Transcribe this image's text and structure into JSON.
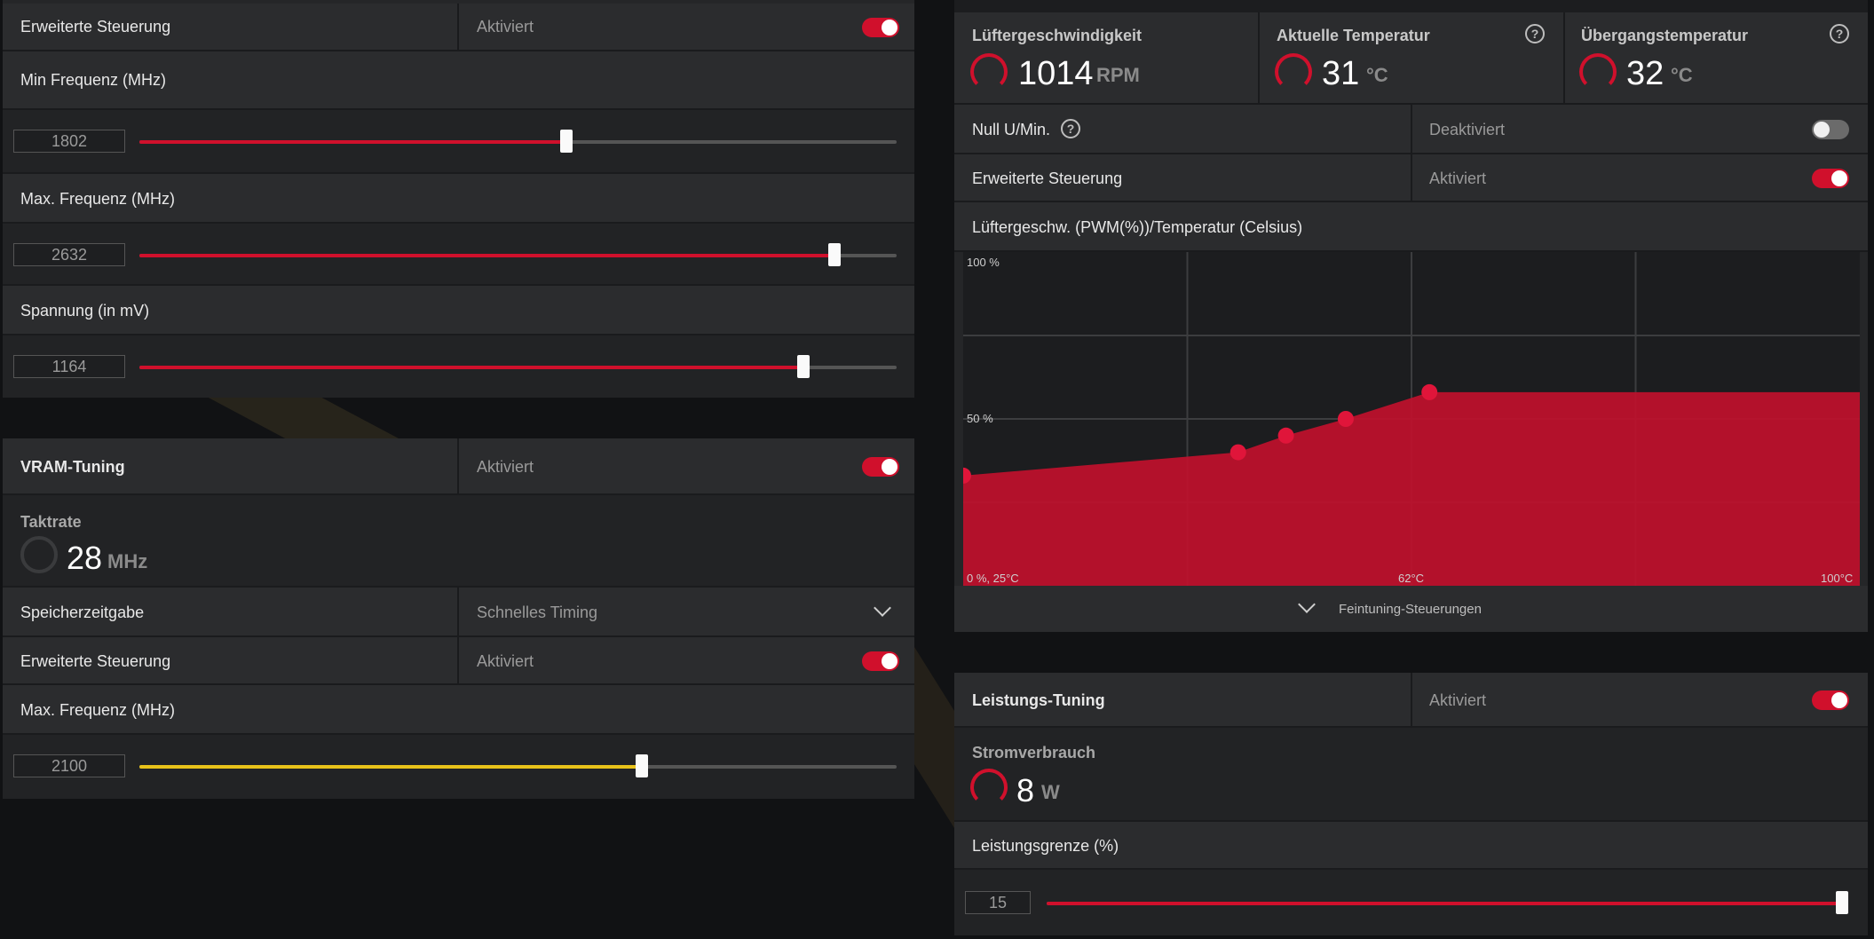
{
  "left": {
    "gpu": {
      "advanced": {
        "label": "Erweiterte Steuerung",
        "status": "Aktiviert",
        "on": true
      },
      "min_freq": {
        "label": "Min Frequenz (MHz)",
        "value": "1802",
        "fraction": 0.564
      },
      "max_freq": {
        "label": "Max. Frequenz (MHz)",
        "value": "2632",
        "fraction": 0.918
      },
      "voltage": {
        "label": "Spannung (in mV)",
        "value": "1164",
        "fraction": 0.877
      }
    },
    "vram": {
      "title": "VRAM-Tuning",
      "status": "Aktiviert",
      "on": true,
      "clock_label": "Taktrate",
      "clock_value": "28",
      "clock_unit": "MHz",
      "timing_label": "Speicherzeitgabe",
      "timing_value": "Schnelles Timing",
      "advanced": {
        "label": "Erweiterte Steuerung",
        "status": "Aktiviert",
        "on": true
      },
      "max_freq": {
        "label": "Max. Frequenz (MHz)",
        "value": "2100",
        "fraction": 0.663
      }
    }
  },
  "right": {
    "fan": {
      "speed": {
        "label": "Lüftergeschwindigkeit",
        "value": "1014",
        "unit": "RPM"
      },
      "temp": {
        "label": "Aktuelle Temperatur",
        "value": "31",
        "unit": "°C"
      },
      "junction": {
        "label": "Übergangstemperatur",
        "value": "32",
        "unit": "°C"
      },
      "zero_rpm": {
        "label": "Null U/Min.",
        "status": "Deaktiviert",
        "on": false
      },
      "advanced": {
        "label": "Erweiterte Steuerung",
        "status": "Aktiviert",
        "on": true
      },
      "curve_title": "Lüftergeschw. (PWM(%))/Temperatur (Celsius)",
      "fine_tune": "Feintuning-Steuerungen"
    },
    "power": {
      "title": "Leistungs-Tuning",
      "status": "Aktiviert",
      "on": true,
      "consumption_label": "Stromverbrauch",
      "consumption_value": "8",
      "consumption_unit": "W",
      "limit_label": "Leistungsgrenze (%)",
      "limit_value": "15",
      "limit_fraction": 1.0
    }
  },
  "chart_data": {
    "type": "area",
    "title": "Lüftergeschw. (PWM(%))/Temperatur (Celsius)",
    "x": [
      25,
      48,
      52,
      57,
      64
    ],
    "values": [
      33,
      40,
      45,
      50,
      58
    ],
    "xlim": [
      25,
      100
    ],
    "ylim": [
      0,
      100
    ],
    "ytick_labels": [
      "100 %",
      "50 %"
    ],
    "xtick_labels": [
      "0 %, 25°C",
      "62°C",
      "100°C"
    ],
    "grid": true,
    "color": "#c0102c"
  }
}
